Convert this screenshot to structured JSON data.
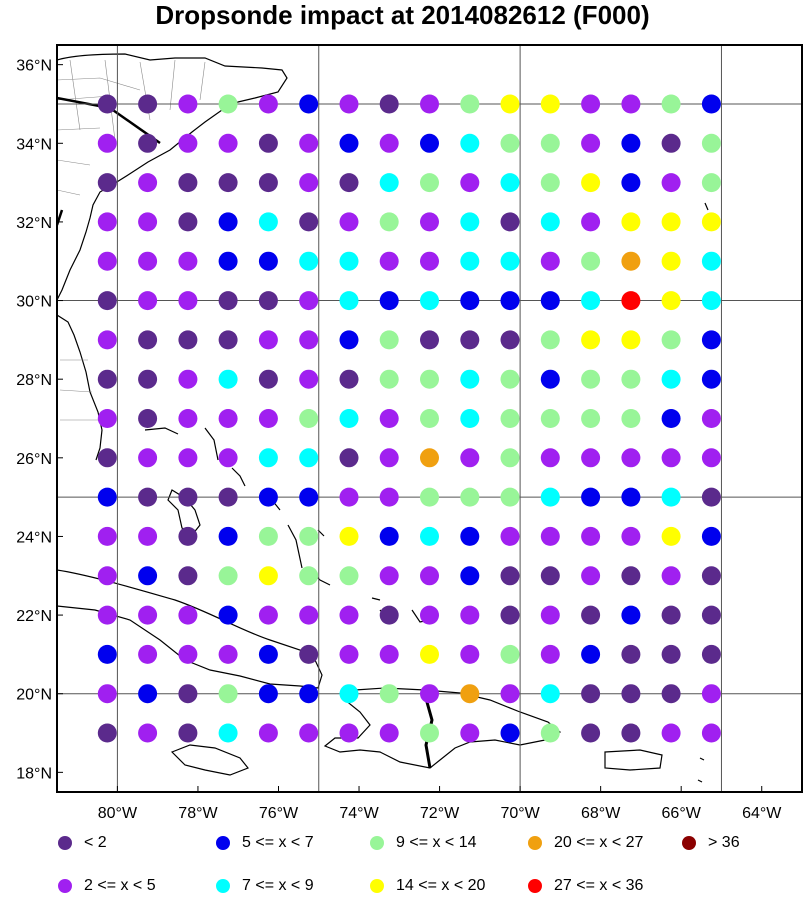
{
  "title": "Dropsonde impact at 2014082612 (F000)",
  "map": {
    "lon_range": [
      -81.5,
      -63
    ],
    "lat_range": [
      17.5,
      36.5
    ],
    "grid_lons": [
      -80,
      -75,
      -70,
      -65
    ],
    "grid_lats": [
      20,
      25,
      30,
      35
    ],
    "lat_ticks": [
      "18°N",
      "20°N",
      "22°N",
      "24°N",
      "26°N",
      "28°N",
      "30°N",
      "32°N",
      "34°N",
      "36°N"
    ],
    "lon_ticks": [
      "80°W",
      "78°W",
      "76°W",
      "74°W",
      "72°W",
      "70°W",
      "68°W",
      "66°W",
      "64°W"
    ],
    "coast_color": "#000000",
    "grid_color": "#555555"
  },
  "legend": [
    {
      "label": "<  2",
      "color": "#5b2a8c"
    },
    {
      "label": "2 <= x <  5",
      "color": "#a020f0"
    },
    {
      "label": "5 <= x <  7",
      "color": "#0000ee"
    },
    {
      "label": "7 <= x <  9",
      "color": "#00ffff"
    },
    {
      "label": "9 <= x < 14",
      "color": "#98f598"
    },
    {
      "label": "14 <= x < 20",
      "color": "#ffff00"
    },
    {
      "label": "20 <= x < 27",
      "color": "#f0a010"
    },
    {
      "label": "27 <= x < 36",
      "color": "#ff0000"
    },
    {
      "label": "> 36",
      "color": "#8b0000"
    }
  ],
  "chart_data": {
    "type": "scatter",
    "title": "Dropsonde impact at 2014082612 (F000)",
    "grid_lon_start": -80.25,
    "grid_lon_step": 1,
    "grid_lat_start": 35,
    "grid_lat_step": -1,
    "category_key": "0=<2, 1=2..5, 2=5..7, 3=7..9, 4=9..14, 5=14..20, 6=20..27, 7=27..36",
    "categories_by_row": [
      [
        0,
        0,
        1,
        4,
        1,
        2,
        1,
        0,
        1,
        4,
        5,
        5,
        1,
        1,
        4,
        2
      ],
      [
        1,
        0,
        1,
        1,
        0,
        1,
        2,
        1,
        2,
        3,
        4,
        4,
        1,
        2,
        0,
        4
      ],
      [
        0,
        1,
        0,
        0,
        0,
        1,
        0,
        3,
        4,
        1,
        3,
        4,
        5,
        2,
        1,
        4
      ],
      [
        1,
        1,
        0,
        2,
        3,
        0,
        1,
        4,
        1,
        3,
        0,
        3,
        1,
        5,
        5,
        5
      ],
      [
        1,
        1,
        1,
        2,
        2,
        3,
        3,
        1,
        1,
        3,
        3,
        1,
        4,
        6,
        5,
        3
      ],
      [
        0,
        1,
        1,
        0,
        0,
        1,
        3,
        2,
        3,
        2,
        2,
        2,
        3,
        7,
        5,
        3
      ],
      [
        1,
        0,
        0,
        0,
        1,
        1,
        2,
        4,
        0,
        0,
        0,
        4,
        5,
        5,
        4,
        2
      ],
      [
        0,
        0,
        1,
        3,
        0,
        1,
        0,
        4,
        4,
        3,
        4,
        2,
        4,
        4,
        3,
        2
      ],
      [
        1,
        0,
        1,
        1,
        1,
        4,
        3,
        1,
        4,
        3,
        4,
        4,
        4,
        4,
        2,
        1
      ],
      [
        0,
        1,
        1,
        1,
        3,
        3,
        0,
        1,
        6,
        1,
        4,
        1,
        1,
        1,
        1,
        1
      ],
      [
        2,
        0,
        0,
        0,
        2,
        2,
        1,
        1,
        4,
        4,
        4,
        3,
        2,
        2,
        3,
        0
      ],
      [
        1,
        1,
        0,
        2,
        4,
        4,
        5,
        2,
        3,
        2,
        1,
        1,
        1,
        1,
        5,
        2
      ],
      [
        1,
        2,
        0,
        4,
        5,
        4,
        4,
        1,
        1,
        2,
        0,
        0,
        1,
        0,
        1,
        0
      ],
      [
        1,
        1,
        1,
        2,
        1,
        1,
        1,
        0,
        1,
        1,
        0,
        1,
        0,
        2,
        0,
        0
      ],
      [
        2,
        1,
        1,
        1,
        2,
        0,
        1,
        1,
        5,
        1,
        4,
        1,
        2,
        0,
        0,
        0
      ],
      [
        1,
        2,
        0,
        4,
        2,
        2,
        3,
        4,
        1,
        6,
        1,
        3,
        0,
        0,
        0,
        1
      ],
      [
        0,
        1,
        0,
        3,
        1,
        1,
        1,
        1,
        4,
        1,
        2,
        4,
        0,
        0,
        1,
        1
      ]
    ]
  }
}
